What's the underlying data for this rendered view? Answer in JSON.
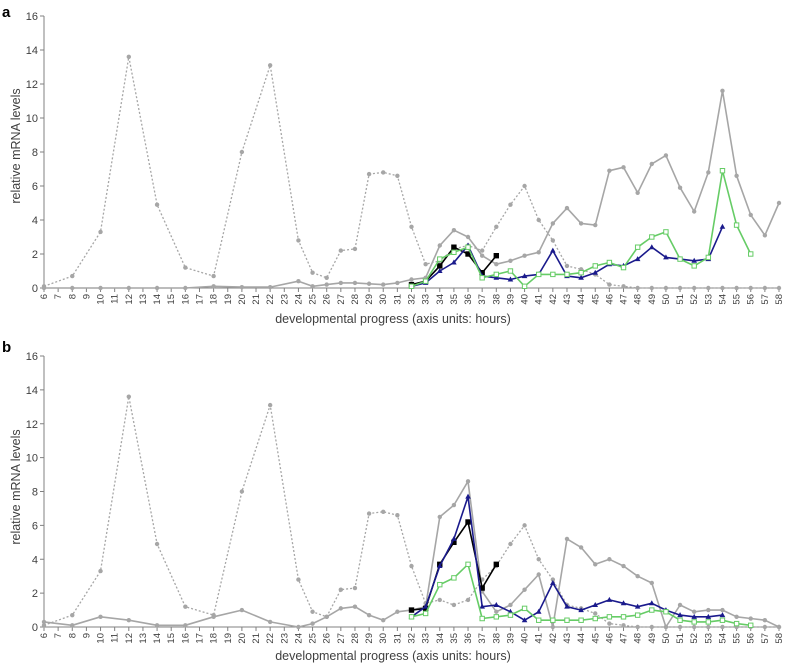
{
  "colors": {
    "axis": "#808080",
    "tick_text": "#404040"
  },
  "chart_data": [
    {
      "type": "line",
      "panel_label": "a",
      "xlabel": "developmental progress (axis units: hours)",
      "ylabel": "relative mRNA levels",
      "xlim": [
        6,
        58
      ],
      "ylim": [
        0,
        16
      ],
      "yticks": [
        0,
        2,
        4,
        6,
        8,
        10,
        12,
        14,
        16
      ],
      "xticks": [
        6,
        7,
        8,
        9,
        10,
        11,
        12,
        13,
        14,
        15,
        16,
        17,
        18,
        19,
        20,
        21,
        22,
        23,
        24,
        25,
        26,
        27,
        28,
        29,
        30,
        31,
        32,
        33,
        34,
        35,
        36,
        37,
        38,
        39,
        40,
        41,
        42,
        43,
        44,
        45,
        46,
        47,
        48,
        49,
        50,
        51,
        52,
        53,
        54,
        55,
        56,
        57,
        58
      ],
      "grid": false,
      "legend": "none",
      "series": [
        {
          "color": "#a6a6a6",
          "style": "dotted",
          "marker": "circle",
          "x": [
            6,
            8,
            10,
            12,
            14,
            16,
            18,
            20,
            22,
            24,
            25,
            26,
            27,
            28,
            29,
            30,
            31,
            32,
            33,
            34,
            35,
            36,
            37,
            38,
            39,
            40,
            41,
            42,
            43,
            44,
            45,
            46,
            47,
            48,
            49,
            50,
            51,
            52,
            53,
            54,
            55,
            56,
            57,
            58
          ],
          "y": [
            0.1,
            0.7,
            3.3,
            13.6,
            4.9,
            1.2,
            0.7,
            8.0,
            13.1,
            2.8,
            0.9,
            0.6,
            2.2,
            2.3,
            6.7,
            6.8,
            6.6,
            3.6,
            1.4,
            1.6,
            2.3,
            2.5,
            2.2,
            3.6,
            4.9,
            6.0,
            4.0,
            2.8,
            1.3,
            1.1,
            0.8,
            0.2,
            0.1,
            0.0,
            0.0,
            0.0,
            0.0,
            0.0,
            0.0,
            0.0,
            0.0,
            0.0,
            0.0,
            0.0
          ]
        },
        {
          "color": "#a6a6a6",
          "style": "solid",
          "marker": "circle",
          "x": [
            6,
            8,
            10,
            12,
            14,
            16,
            18,
            20,
            22,
            24,
            25,
            26,
            27,
            28,
            29,
            30,
            31,
            32,
            33,
            34,
            35,
            36,
            37,
            38,
            39,
            40,
            41,
            42,
            43,
            44,
            45,
            46,
            47,
            48,
            49,
            50,
            51,
            52,
            53,
            54,
            55,
            56,
            57,
            58
          ],
          "y": [
            0.0,
            0.0,
            0.0,
            0.0,
            0.0,
            0.0,
            0.1,
            0.05,
            0.05,
            0.4,
            0.1,
            0.2,
            0.3,
            0.3,
            0.25,
            0.2,
            0.3,
            0.5,
            0.6,
            2.5,
            3.4,
            3.0,
            1.9,
            1.4,
            1.6,
            1.9,
            2.1,
            3.8,
            4.7,
            3.8,
            3.7,
            6.9,
            7.1,
            5.6,
            7.3,
            7.8,
            5.9,
            4.5,
            6.8,
            11.6,
            6.6,
            4.3,
            3.1,
            5.0
          ]
        },
        {
          "color": "#000000",
          "style": "solid",
          "marker": "square",
          "x": [
            32,
            33,
            34,
            35,
            36,
            37,
            38
          ],
          "y": [
            0.2,
            0.4,
            1.3,
            2.4,
            2.0,
            0.9,
            1.9
          ]
        },
        {
          "color": "#1a1a8c",
          "style": "solid",
          "marker": "triangle",
          "x": [
            32,
            33,
            34,
            35,
            36,
            37,
            38,
            39,
            40,
            41,
            42,
            43,
            44,
            45,
            46,
            47,
            48,
            49,
            50,
            51,
            52,
            53,
            54
          ],
          "y": [
            0.1,
            0.3,
            1.0,
            1.5,
            2.5,
            0.7,
            0.6,
            0.5,
            0.7,
            0.8,
            2.2,
            0.7,
            0.6,
            0.9,
            1.4,
            1.3,
            1.7,
            2.4,
            1.8,
            1.7,
            1.6,
            1.7,
            3.6
          ]
        },
        {
          "color": "#66cc66",
          "style": "solid",
          "marker": "square",
          "x": [
            32,
            33,
            34,
            35,
            36,
            37,
            38,
            39,
            40,
            41,
            42,
            43,
            44,
            45,
            46,
            47,
            48,
            49,
            50,
            51,
            52,
            53,
            54,
            55,
            56
          ],
          "y": [
            0.1,
            0.4,
            1.7,
            2.1,
            2.4,
            0.6,
            0.8,
            1.0,
            0.1,
            0.8,
            0.8,
            0.8,
            0.9,
            1.3,
            1.5,
            1.2,
            2.4,
            3.0,
            3.3,
            1.7,
            1.3,
            1.8,
            6.9,
            3.7,
            2.0
          ]
        }
      ]
    },
    {
      "type": "line",
      "panel_label": "b",
      "xlabel": "developmental progress (axis units: hours)",
      "ylabel": "relative mRNA levels",
      "xlim": [
        6,
        58
      ],
      "ylim": [
        0,
        16
      ],
      "yticks": [
        0,
        2,
        4,
        6,
        8,
        10,
        12,
        14,
        16
      ],
      "xticks": [
        6,
        7,
        8,
        9,
        10,
        11,
        12,
        13,
        14,
        15,
        16,
        17,
        18,
        19,
        20,
        21,
        22,
        23,
        24,
        25,
        26,
        27,
        28,
        29,
        30,
        31,
        32,
        33,
        34,
        35,
        36,
        37,
        38,
        39,
        40,
        41,
        42,
        43,
        44,
        45,
        46,
        47,
        48,
        49,
        50,
        51,
        52,
        53,
        54,
        55,
        56,
        57,
        58
      ],
      "grid": false,
      "legend": "none",
      "series": [
        {
          "color": "#a6a6a6",
          "style": "dotted",
          "marker": "circle",
          "x": [
            6,
            8,
            10,
            12,
            14,
            16,
            18,
            20,
            22,
            24,
            25,
            26,
            27,
            28,
            29,
            30,
            31,
            32,
            33,
            34,
            35,
            36,
            37,
            38,
            39,
            40,
            41,
            42,
            43,
            44,
            45,
            46,
            47,
            48,
            49,
            50,
            51,
            52,
            53,
            54,
            55,
            56,
            57,
            58
          ],
          "y": [
            0.1,
            0.7,
            3.3,
            13.6,
            4.9,
            1.2,
            0.7,
            8.0,
            13.1,
            2.8,
            0.9,
            0.6,
            2.2,
            2.3,
            6.7,
            6.8,
            6.6,
            3.6,
            1.4,
            1.6,
            1.3,
            1.6,
            2.8,
            3.6,
            4.9,
            6.0,
            4.0,
            2.8,
            1.3,
            1.1,
            0.8,
            0.2,
            0.1,
            0.0,
            0.0,
            0.0,
            0.0,
            0.0,
            0.0,
            0.0,
            0.0,
            0.0,
            0.0,
            0.0
          ]
        },
        {
          "color": "#a6a6a6",
          "style": "solid",
          "marker": "circle",
          "x": [
            6,
            8,
            10,
            12,
            14,
            16,
            18,
            20,
            22,
            24,
            25,
            26,
            27,
            28,
            29,
            30,
            31,
            32,
            33,
            34,
            35,
            36,
            37,
            38,
            39,
            40,
            41,
            42,
            43,
            44,
            45,
            46,
            47,
            48,
            49,
            50,
            51,
            52,
            53,
            54,
            55,
            56,
            57,
            58
          ],
          "y": [
            0.3,
            0.1,
            0.6,
            0.4,
            0.1,
            0.1,
            0.6,
            1.0,
            0.3,
            0.0,
            0.2,
            0.6,
            1.1,
            1.2,
            0.7,
            0.4,
            0.9,
            1.0,
            1.2,
            6.5,
            7.2,
            8.6,
            2.1,
            0.9,
            1.3,
            2.2,
            3.1,
            0.0,
            5.2,
            4.7,
            3.7,
            4.0,
            3.6,
            3.0,
            2.6,
            0.0,
            1.3,
            0.9,
            1.0,
            1.0,
            0.6,
            0.5,
            0.4,
            0.0
          ]
        },
        {
          "color": "#000000",
          "style": "solid",
          "marker": "square",
          "x": [
            32,
            33,
            34,
            35,
            36,
            37,
            38
          ],
          "y": [
            1.0,
            1.1,
            3.7,
            5.0,
            6.2,
            2.3,
            3.7
          ]
        },
        {
          "color": "#1a1a8c",
          "style": "solid",
          "marker": "triangle",
          "x": [
            32,
            33,
            34,
            35,
            36,
            37,
            38,
            39,
            40,
            41,
            42,
            43,
            44,
            45,
            46,
            47,
            48,
            49,
            50,
            51,
            52,
            53,
            54
          ],
          "y": [
            0.6,
            1.2,
            3.6,
            5.2,
            7.7,
            1.2,
            1.3,
            0.9,
            0.4,
            0.9,
            2.6,
            1.2,
            1.0,
            1.3,
            1.6,
            1.4,
            1.2,
            1.4,
            1.0,
            0.7,
            0.6,
            0.6,
            0.7
          ]
        },
        {
          "color": "#66cc66",
          "style": "solid",
          "marker": "square",
          "x": [
            32,
            33,
            34,
            35,
            36,
            37,
            38,
            39,
            40,
            41,
            42,
            43,
            44,
            45,
            46,
            47,
            48,
            49,
            50,
            51,
            52,
            53,
            54,
            55,
            56
          ],
          "y": [
            0.6,
            0.8,
            2.5,
            2.9,
            3.7,
            0.5,
            0.6,
            0.7,
            1.1,
            0.4,
            0.4,
            0.4,
            0.4,
            0.5,
            0.6,
            0.6,
            0.7,
            1.0,
            0.9,
            0.4,
            0.3,
            0.3,
            0.4,
            0.2,
            0.1
          ]
        }
      ]
    }
  ]
}
